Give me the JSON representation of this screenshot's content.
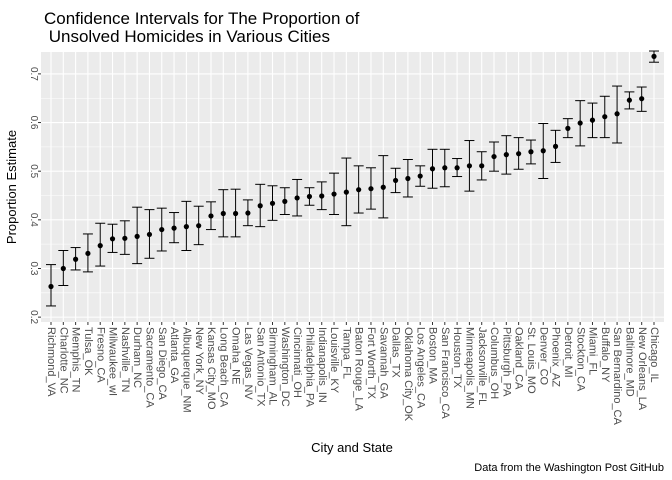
{
  "chart_data": {
    "type": "scatter",
    "title_lines": [
      "Confidence Intervals for The Proportion of",
      " Unsolved Homicides in Various Cities"
    ],
    "xlabel": "City and State",
    "ylabel": "Proportion Estimate",
    "caption": "Data from the Washington Post GitHub",
    "ylim": [
      0.19,
      0.745
    ],
    "y_ticks": [
      0.2,
      0.3,
      0.4,
      0.5,
      0.6,
      0.7
    ],
    "y_tick_labels": [
      "0.2",
      "0.3",
      "0.4",
      "0.5",
      "0.6",
      "0.7"
    ],
    "grid": true,
    "colors": {
      "panel": "#ebebeb",
      "grid": "#ffffff",
      "point": "#000000",
      "bar": "#000000"
    },
    "points": [
      {
        "city": "Richmond_VA",
        "estimate": 0.263,
        "lower": 0.223,
        "upper": 0.308
      },
      {
        "city": "Charlotte_NC",
        "estimate": 0.3,
        "lower": 0.265,
        "upper": 0.337
      },
      {
        "city": "Memphis_TN",
        "estimate": 0.319,
        "lower": 0.297,
        "upper": 0.343
      },
      {
        "city": "Tulsa_OK",
        "estimate": 0.331,
        "lower": 0.293,
        "upper": 0.371
      },
      {
        "city": "Fresno_CA",
        "estimate": 0.347,
        "lower": 0.305,
        "upper": 0.393
      },
      {
        "city": "Milwaukee_wI",
        "estimate": 0.361,
        "lower": 0.333,
        "upper": 0.391
      },
      {
        "city": "Nashville_TN",
        "estimate": 0.362,
        "lower": 0.329,
        "upper": 0.398
      },
      {
        "city": "Durham_NC",
        "estimate": 0.366,
        "lower": 0.31,
        "upper": 0.426
      },
      {
        "city": "Sacramento_CA",
        "estimate": 0.37,
        "lower": 0.321,
        "upper": 0.421
      },
      {
        "city": "San Diego_CA",
        "estimate": 0.38,
        "lower": 0.336,
        "upper": 0.424
      },
      {
        "city": "Atlanta_GA",
        "estimate": 0.383,
        "lower": 0.353,
        "upper": 0.415
      },
      {
        "city": "Albuquerque_NM",
        "estimate": 0.386,
        "lower": 0.337,
        "upper": 0.438
      },
      {
        "city": "New York_NY",
        "estimate": 0.388,
        "lower": 0.349,
        "upper": 0.428
      },
      {
        "city": "Kansas City_MO",
        "estimate": 0.408,
        "lower": 0.38,
        "upper": 0.437
      },
      {
        "city": "Long Beach_CA",
        "estimate": 0.413,
        "lower": 0.365,
        "upper": 0.462
      },
      {
        "city": "Omaha_NE",
        "estimate": 0.413,
        "lower": 0.365,
        "upper": 0.463
      },
      {
        "city": "Las Vegas_NV",
        "estimate": 0.414,
        "lower": 0.388,
        "upper": 0.441
      },
      {
        "city": "San Antonio_TX",
        "estimate": 0.429,
        "lower": 0.386,
        "upper": 0.473
      },
      {
        "city": "Birmingham_AL",
        "estimate": 0.434,
        "lower": 0.399,
        "upper": 0.47
      },
      {
        "city": "Washington_DC",
        "estimate": 0.438,
        "lower": 0.411,
        "upper": 0.466
      },
      {
        "city": "Cincinnati_OH",
        "estimate": 0.445,
        "lower": 0.408,
        "upper": 0.483
      },
      {
        "city": "Philadelphia_PA",
        "estimate": 0.448,
        "lower": 0.43,
        "upper": 0.466
      },
      {
        "city": "Indianapolis_IN",
        "estimate": 0.449,
        "lower": 0.421,
        "upper": 0.478
      },
      {
        "city": "Louisville_KY",
        "estimate": 0.453,
        "lower": 0.411,
        "upper": 0.496
      },
      {
        "city": "Tampa_FL",
        "estimate": 0.457,
        "lower": 0.388,
        "upper": 0.527
      },
      {
        "city": "Baton Rouge_LA",
        "estimate": 0.462,
        "lower": 0.414,
        "upper": 0.511
      },
      {
        "city": "Fort Worth_TX",
        "estimate": 0.464,
        "lower": 0.422,
        "upper": 0.507
      },
      {
        "city": "Savannah_GA",
        "estimate": 0.467,
        "lower": 0.404,
        "upper": 0.532
      },
      {
        "city": "Dallas_TX",
        "estimate": 0.481,
        "lower": 0.456,
        "upper": 0.506
      },
      {
        "city": "Oklahoma City_OK",
        "estimate": 0.485,
        "lower": 0.447,
        "upper": 0.524
      },
      {
        "city": "Los Angeles_CA",
        "estimate": 0.49,
        "lower": 0.469,
        "upper": 0.511
      },
      {
        "city": "Boston_MA",
        "estimate": 0.505,
        "lower": 0.465,
        "upper": 0.545
      },
      {
        "city": "San Francisco_CA",
        "estimate": 0.507,
        "lower": 0.468,
        "upper": 0.545
      },
      {
        "city": "Houston_TX",
        "estimate": 0.507,
        "lower": 0.489,
        "upper": 0.526
      },
      {
        "city": "Minneapolis_MN",
        "estimate": 0.511,
        "lower": 0.459,
        "upper": 0.563
      },
      {
        "city": "Jacksonville_FL",
        "estimate": 0.511,
        "lower": 0.482,
        "upper": 0.54
      },
      {
        "city": "Columbus_OH",
        "estimate": 0.53,
        "lower": 0.5,
        "upper": 0.56
      },
      {
        "city": "Pittsburgh_PA",
        "estimate": 0.534,
        "lower": 0.494,
        "upper": 0.573
      },
      {
        "city": "Oakland_CA",
        "estimate": 0.536,
        "lower": 0.504,
        "upper": 0.569
      },
      {
        "city": "St. Louis_MO",
        "estimate": 0.54,
        "lower": 0.515,
        "upper": 0.564
      },
      {
        "city": "Denver_CO",
        "estimate": 0.542,
        "lower": 0.485,
        "upper": 0.598
      },
      {
        "city": "Phoenix_AZ",
        "estimate": 0.551,
        "lower": 0.518,
        "upper": 0.584
      },
      {
        "city": "Detroit_MI",
        "estimate": 0.588,
        "lower": 0.569,
        "upper": 0.608
      },
      {
        "city": "Stockton_CA",
        "estimate": 0.599,
        "lower": 0.552,
        "upper": 0.645
      },
      {
        "city": "Miami_FL",
        "estimate": 0.605,
        "lower": 0.569,
        "upper": 0.64
      },
      {
        "city": "Buffalo_NY",
        "estimate": 0.612,
        "lower": 0.569,
        "upper": 0.654
      },
      {
        "city": "San Bernardino_CA",
        "estimate": 0.618,
        "lower": 0.558,
        "upper": 0.675
      },
      {
        "city": "Baltimore_MD",
        "estimate": 0.646,
        "lower": 0.628,
        "upper": 0.663
      },
      {
        "city": "New Orleans_LA",
        "estimate": 0.649,
        "lower": 0.623,
        "upper": 0.673
      },
      {
        "city": "Chicago_IL",
        "estimate": 0.736,
        "lower": 0.724,
        "upper": 0.747
      }
    ]
  }
}
